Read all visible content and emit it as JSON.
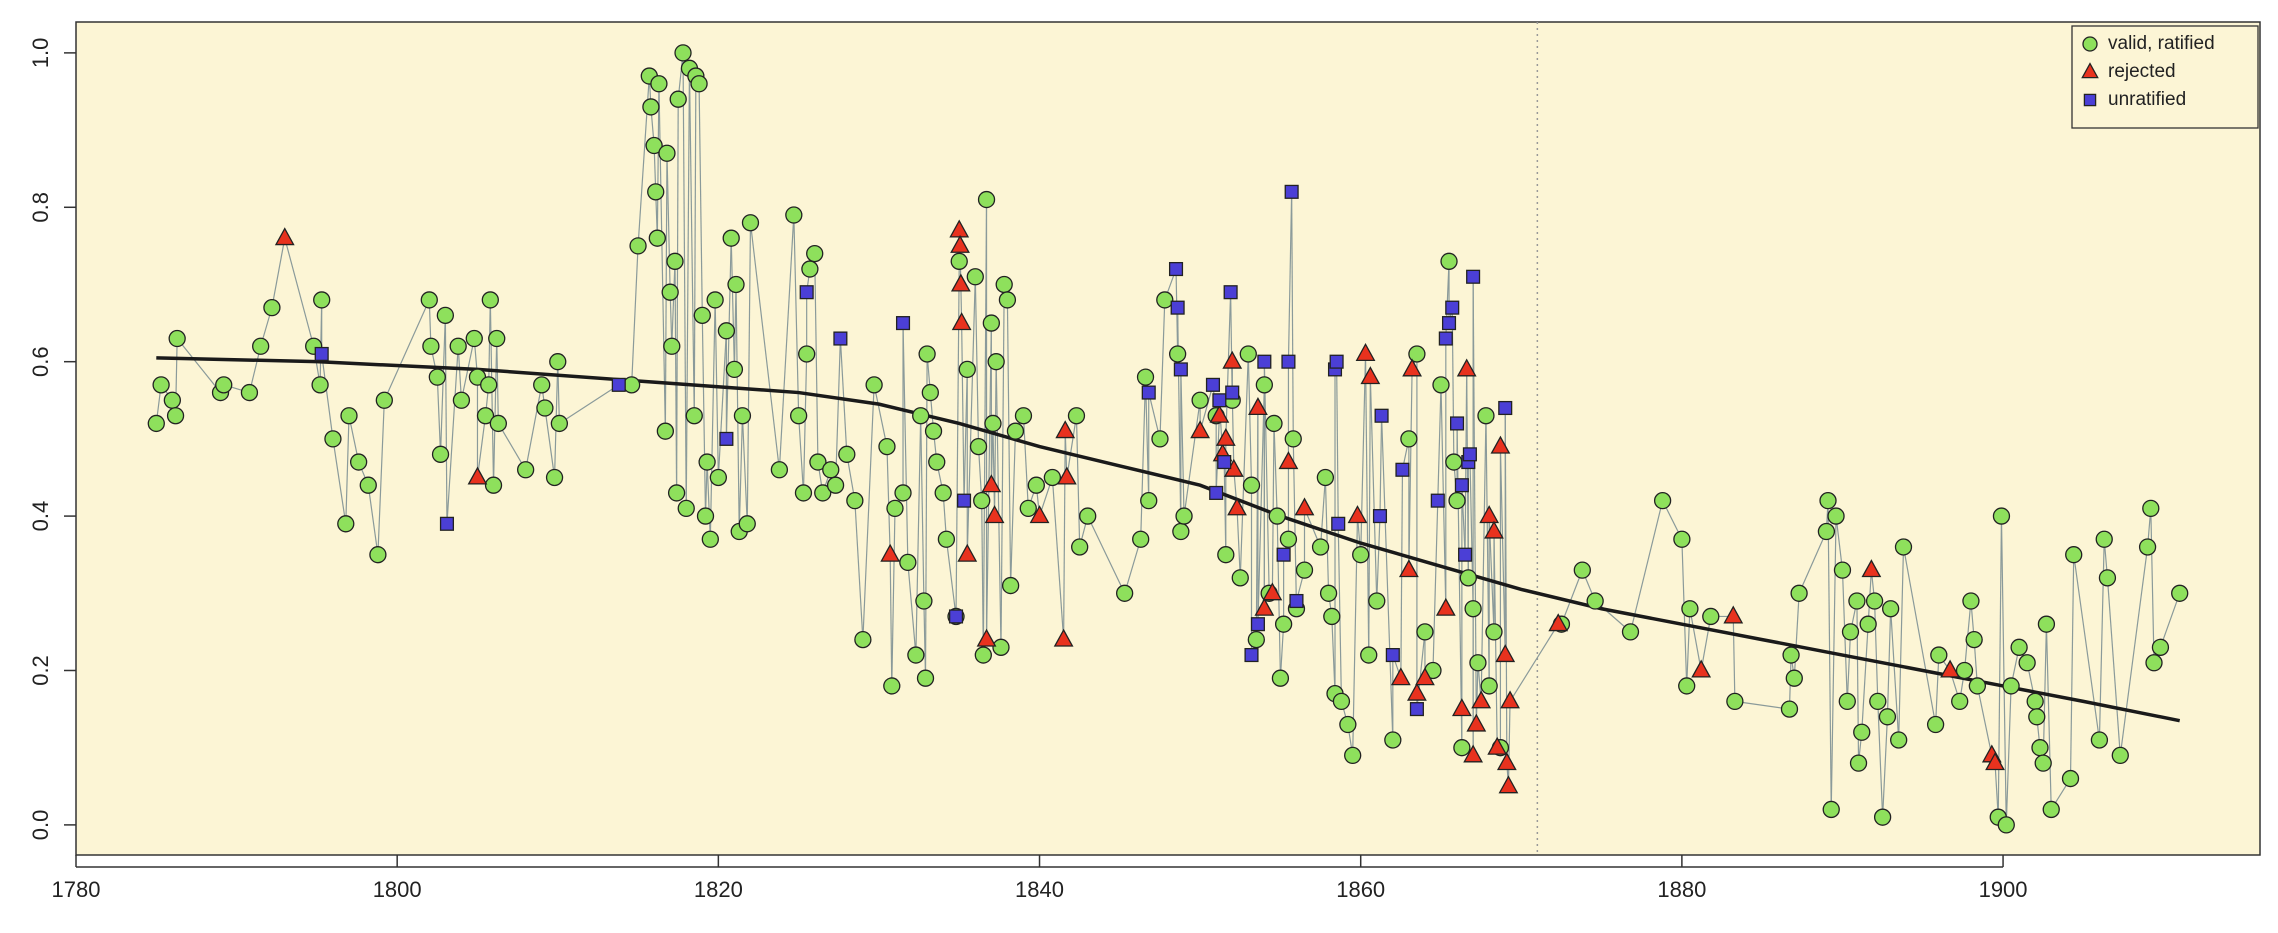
{
  "chart_data": {
    "type": "scatter",
    "xlim": [
      1780,
      1916
    ],
    "ylim": [
      -0.039,
      1.04
    ],
    "xticks": [
      1780,
      1800,
      1820,
      1840,
      1860,
      1880,
      1900
    ],
    "yticks": [
      {
        "value": 0,
        "label": "0.0"
      },
      0.2,
      0.4,
      0.6,
      0.8,
      {
        "value": 1,
        "label": "1.0"
      }
    ],
    "vline": 1871,
    "legend": "top-right",
    "connect_color": "#8a9a9a",
    "trend": {
      "color": "#1a1a1a",
      "x": [
        1785,
        1795,
        1805,
        1815,
        1825,
        1830,
        1835,
        1840,
        1845,
        1850,
        1855,
        1860,
        1865,
        1870,
        1875,
        1880,
        1885,
        1890,
        1895,
        1900,
        1905,
        1911
      ],
      "values": [
        0.605,
        0.6,
        0.59,
        0.575,
        0.56,
        0.545,
        0.52,
        0.49,
        0.465,
        0.44,
        0.4,
        0.365,
        0.335,
        0.305,
        0.28,
        0.26,
        0.24,
        0.22,
        0.2,
        0.18,
        0.16,
        0.135
      ]
    },
    "series": [
      {
        "name": "valid, ratified",
        "color": "#8ee05c",
        "marker": "circle",
        "x": [
          1785,
          1785.3,
          1786,
          1786.2,
          1786.3,
          1789,
          1789.2,
          1790.8,
          1791.5,
          1792.2,
          1794.8,
          1795.2,
          1795.3,
          1796,
          1796.8,
          1797,
          1797.6,
          1798.2,
          1798.8,
          1799.2,
          1802,
          1802.1,
          1802.5,
          1802.7,
          1803,
          1803.8,
          1804,
          1804.8,
          1805,
          1805.5,
          1805.7,
          1805.8,
          1806,
          1806.2,
          1806.3,
          1808,
          1809,
          1809.2,
          1809.8,
          1810,
          1810.1,
          1814.6,
          1815,
          1815.7,
          1815.8,
          1816,
          1816.1,
          1816.2,
          1816.3,
          1816.7,
          1816.8,
          1817,
          1817.1,
          1817.3,
          1817.4,
          1817.5,
          1817.8,
          1818,
          1818.2,
          1818.5,
          1818.6,
          1818.8,
          1819,
          1819.2,
          1819.3,
          1819.5,
          1819.8,
          1820,
          1820.5,
          1820.8,
          1821,
          1821.1,
          1821.3,
          1821.5,
          1821.8,
          1822,
          1823.8,
          1824.7,
          1825,
          1825.3,
          1825.5,
          1825.7,
          1826,
          1826.2,
          1826.5,
          1827,
          1827.3,
          1828,
          1828.5,
          1829,
          1829.7,
          1830.5,
          1830.8,
          1831,
          1831.5,
          1831.8,
          1832.3,
          1832.6,
          1832.8,
          1832.9,
          1833,
          1833.2,
          1833.4,
          1833.6,
          1834,
          1834.2,
          1834.8,
          1835,
          1835.5,
          1836,
          1836.2,
          1836.4,
          1836.5,
          1836.7,
          1837,
          1837.1,
          1837.3,
          1837.6,
          1837.8,
          1838,
          1838.2,
          1838.5,
          1839,
          1839.3,
          1839.8,
          1840.8,
          1842.3,
          1842.5,
          1843,
          1845.3,
          1846.3,
          1846.6,
          1846.8,
          1847.5,
          1847.8,
          1848.6,
          1848.8,
          1849,
          1850,
          1851,
          1851.6,
          1852,
          1852.5,
          1853,
          1853.2,
          1853.5,
          1854,
          1854.3,
          1854.6,
          1854.8,
          1855,
          1855.2,
          1855.5,
          1855.8,
          1856,
          1856.5,
          1857.5,
          1857.8,
          1858,
          1858.2,
          1858.4,
          1858.8,
          1859.2,
          1859.5,
          1860,
          1860.5,
          1861,
          1862,
          1863,
          1863.5,
          1864,
          1864.5,
          1865,
          1865.5,
          1865.8,
          1866,
          1866.3,
          1866.7,
          1867,
          1867.3,
          1867.8,
          1868,
          1868.3,
          1868.7,
          1872.5,
          1873.8,
          1874.6,
          1876.8,
          1878.8,
          1880,
          1880.3,
          1880.5,
          1881.8,
          1883.3,
          1886.7,
          1886.8,
          1887,
          1887.3,
          1889,
          1889.1,
          1889.3,
          1889.6,
          1890,
          1890.3,
          1890.5,
          1890.9,
          1891,
          1891.2,
          1891.6,
          1892,
          1892.2,
          1892.5,
          1892.8,
          1893,
          1893.5,
          1893.8,
          1895.8,
          1896,
          1897.3,
          1897.6,
          1898,
          1898.2,
          1898.4,
          1899.7,
          1899.9,
          1900.2,
          1900.5,
          1901,
          1901.5,
          1902,
          1902.1,
          1902.3,
          1902.5,
          1902.7,
          1903,
          1904.2,
          1904.4,
          1906,
          1906.3,
          1906.5,
          1907.3,
          1909,
          1909.2,
          1909.4,
          1909.8,
          1911
        ],
        "values": [
          0.52,
          0.57,
          0.55,
          0.53,
          0.63,
          0.56,
          0.57,
          0.56,
          0.62,
          0.67,
          0.62,
          0.57,
          0.68,
          0.5,
          0.39,
          0.53,
          0.47,
          0.44,
          0.35,
          0.55,
          0.68,
          0.62,
          0.58,
          0.48,
          0.66,
          0.62,
          0.55,
          0.63,
          0.58,
          0.53,
          0.57,
          0.68,
          0.44,
          0.63,
          0.52,
          0.46,
          0.57,
          0.54,
          0.45,
          0.6,
          0.52,
          0.57,
          0.75,
          0.97,
          0.93,
          0.88,
          0.82,
          0.76,
          0.96,
          0.51,
          0.87,
          0.69,
          0.62,
          0.73,
          0.43,
          0.94,
          1.0,
          0.41,
          0.98,
          0.53,
          0.97,
          0.96,
          0.66,
          0.4,
          0.47,
          0.37,
          0.68,
          0.45,
          0.64,
          0.76,
          0.59,
          0.7,
          0.38,
          0.53,
          0.39,
          0.78,
          0.46,
          0.79,
          0.53,
          0.43,
          0.61,
          0.72,
          0.74,
          0.47,
          0.43,
          0.46,
          0.44,
          0.48,
          0.42,
          0.24,
          0.57,
          0.49,
          0.18,
          0.41,
          0.43,
          0.34,
          0.22,
          0.53,
          0.29,
          0.19,
          0.61,
          0.56,
          0.51,
          0.47,
          0.43,
          0.37,
          0.27,
          0.73,
          0.59,
          0.71,
          0.49,
          0.42,
          0.22,
          0.81,
          0.65,
          0.52,
          0.6,
          0.23,
          0.7,
          0.68,
          0.31,
          0.51,
          0.53,
          0.41,
          0.44,
          0.45,
          0.53,
          0.36,
          0.4,
          0.3,
          0.37,
          0.58,
          0.42,
          0.5,
          0.68,
          0.61,
          0.38,
          0.4,
          0.55,
          0.53,
          0.35,
          0.55,
          0.32,
          0.61,
          0.44,
          0.24,
          0.57,
          0.3,
          0.52,
          0.4,
          0.19,
          0.26,
          0.37,
          0.5,
          0.28,
          0.33,
          0.36,
          0.45,
          0.3,
          0.27,
          0.17,
          0.16,
          0.13,
          0.09,
          0.35,
          0.22,
          0.29,
          0.11,
          0.5,
          0.61,
          0.25,
          0.2,
          0.57,
          0.73,
          0.47,
          0.42,
          0.1,
          0.32,
          0.28,
          0.21,
          0.53,
          0.18,
          0.25,
          0.1,
          0.26,
          0.33,
          0.29,
          0.25,
          0.42,
          0.37,
          0.18,
          0.28,
          0.27,
          0.16,
          0.15,
          0.22,
          0.19,
          0.3,
          0.38,
          0.42,
          0.02,
          0.4,
          0.33,
          0.16,
          0.25,
          0.29,
          0.08,
          0.12,
          0.26,
          0.29,
          0.16,
          0.01,
          0.14,
          0.28,
          0.11,
          0.36,
          0.13,
          0.22,
          0.16,
          0.2,
          0.29,
          0.24,
          0.18,
          0.01,
          0.4,
          0.0,
          0.18,
          0.23,
          0.21,
          0.16,
          0.14,
          0.1,
          0.08,
          0.26,
          0.02,
          0.06,
          0.35,
          0.11,
          0.37,
          0.32,
          0.09,
          0.36,
          0.41,
          0.21,
          0.23,
          0.3
        ]
      },
      {
        "name": "rejected",
        "color": "#e8321e",
        "marker": "triangle",
        "x": [
          1793,
          1805,
          1830.7,
          1835,
          1835.05,
          1835.1,
          1835.15,
          1835.5,
          1836.7,
          1837,
          1837.2,
          1840,
          1841.5,
          1841.6,
          1841.7,
          1850,
          1851.2,
          1851.4,
          1851.6,
          1852,
          1852.1,
          1852.3,
          1853.6,
          1854,
          1854.5,
          1855.5,
          1856.5,
          1859.8,
          1860.3,
          1860.6,
          1862.5,
          1863,
          1863.2,
          1863.5,
          1864,
          1865.3,
          1866.3,
          1866.6,
          1867,
          1867.2,
          1867.5,
          1868,
          1868.3,
          1868.5,
          1868.7,
          1869,
          1869.1,
          1869.2,
          1869.3,
          1872.3,
          1881.2,
          1883.2,
          1891.8,
          1896.7,
          1899.3,
          1899.5
        ],
        "values": [
          0.76,
          0.45,
          0.35,
          0.77,
          0.75,
          0.7,
          0.65,
          0.35,
          0.24,
          0.44,
          0.4,
          0.4,
          0.24,
          0.51,
          0.45,
          0.51,
          0.53,
          0.48,
          0.5,
          0.6,
          0.46,
          0.41,
          0.54,
          0.28,
          0.3,
          0.47,
          0.41,
          0.4,
          0.61,
          0.58,
          0.19,
          0.33,
          0.59,
          0.17,
          0.19,
          0.28,
          0.15,
          0.59,
          0.09,
          0.13,
          0.16,
          0.4,
          0.38,
          0.1,
          0.49,
          0.22,
          0.08,
          0.05,
          0.16,
          0.26,
          0.2,
          0.27,
          0.33,
          0.2,
          0.09,
          0.08
        ]
      },
      {
        "name": "unratified",
        "color": "#4b3fd6",
        "marker": "square",
        "x": [
          1795.3,
          1803.1,
          1813.8,
          1820.5,
          1825.5,
          1827.6,
          1831.5,
          1834.8,
          1835.3,
          1846.8,
          1848.5,
          1848.6,
          1848.8,
          1850.8,
          1851,
          1851.2,
          1851.5,
          1851.9,
          1852,
          1853.2,
          1853.6,
          1854,
          1855.2,
          1855.5,
          1855.7,
          1856,
          1858.4,
          1858.5,
          1858.6,
          1861.2,
          1861.3,
          1862,
          1862.6,
          1863.5,
          1864.8,
          1865.3,
          1865.5,
          1865.7,
          1866,
          1866.3,
          1866.5,
          1866.7,
          1866.8,
          1867,
          1869
        ],
        "values": [
          0.61,
          0.39,
          0.57,
          0.5,
          0.69,
          0.63,
          0.65,
          0.27,
          0.42,
          0.56,
          0.72,
          0.67,
          0.59,
          0.57,
          0.43,
          0.55,
          0.47,
          0.69,
          0.56,
          0.22,
          0.26,
          0.6,
          0.35,
          0.6,
          0.82,
          0.29,
          0.59,
          0.6,
          0.39,
          0.4,
          0.53,
          0.22,
          0.46,
          0.15,
          0.42,
          0.63,
          0.65,
          0.67,
          0.52,
          0.44,
          0.35,
          0.47,
          0.48,
          0.71,
          0.54
        ]
      }
    ]
  }
}
